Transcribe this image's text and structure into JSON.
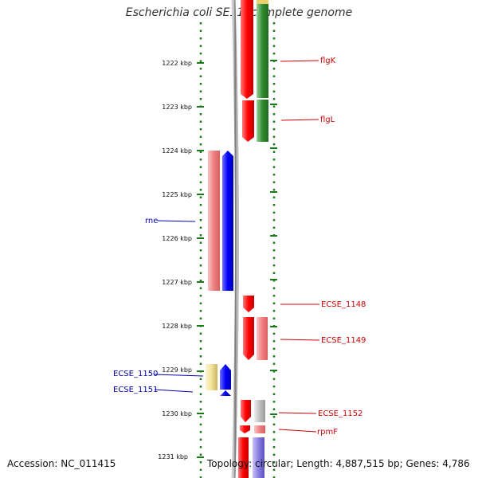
{
  "title": "Escherichia coli SE11, complete genome",
  "footer": {
    "accession": "Accession: NC_011415",
    "topology": "Topology: circular; Length: 4,887,515 bp; Genes: 4,786"
  },
  "scale": {
    "unit": "kbp",
    "tick_labels": [
      "1222 kbp",
      "1223 kbp",
      "1224 kbp",
      "1225 kbp",
      "1226 kbp",
      "1227 kbp",
      "1228 kbp",
      "1229 kbp",
      "1230 kbp",
      "1231 kbp"
    ]
  },
  "genes": [
    {
      "name": "flgK",
      "strand": "forward",
      "color": "#cc0000"
    },
    {
      "name": "flgL",
      "strand": "forward",
      "color": "#cc0000"
    },
    {
      "name": "rne",
      "strand": "reverse",
      "color": "#0000aa"
    },
    {
      "name": "ECSE_1148",
      "strand": "forward",
      "color": "#cc0000"
    },
    {
      "name": "ECSE_1149",
      "strand": "forward",
      "color": "#cc0000"
    },
    {
      "name": "ECSE_1150",
      "strand": "reverse",
      "color": "#0000aa"
    },
    {
      "name": "ECSE_1151",
      "strand": "reverse",
      "color": "#0000aa"
    },
    {
      "name": "ECSE_1152",
      "strand": "forward",
      "color": "#cc0000"
    },
    {
      "name": "rpmF",
      "strand": "forward",
      "color": "#cc0000"
    }
  ],
  "colors": {
    "forward_strand": "#ff0000",
    "reverse_strand": "#0000ff",
    "feature_green": "#2e8b2e",
    "feature_pink": "#f08080",
    "feature_yellow": "#f3e39a",
    "feature_gray": "#c0c0c0",
    "feature_purple": "#8a7fe0",
    "backbone": "#888888",
    "dots": "#1a7a1a"
  }
}
